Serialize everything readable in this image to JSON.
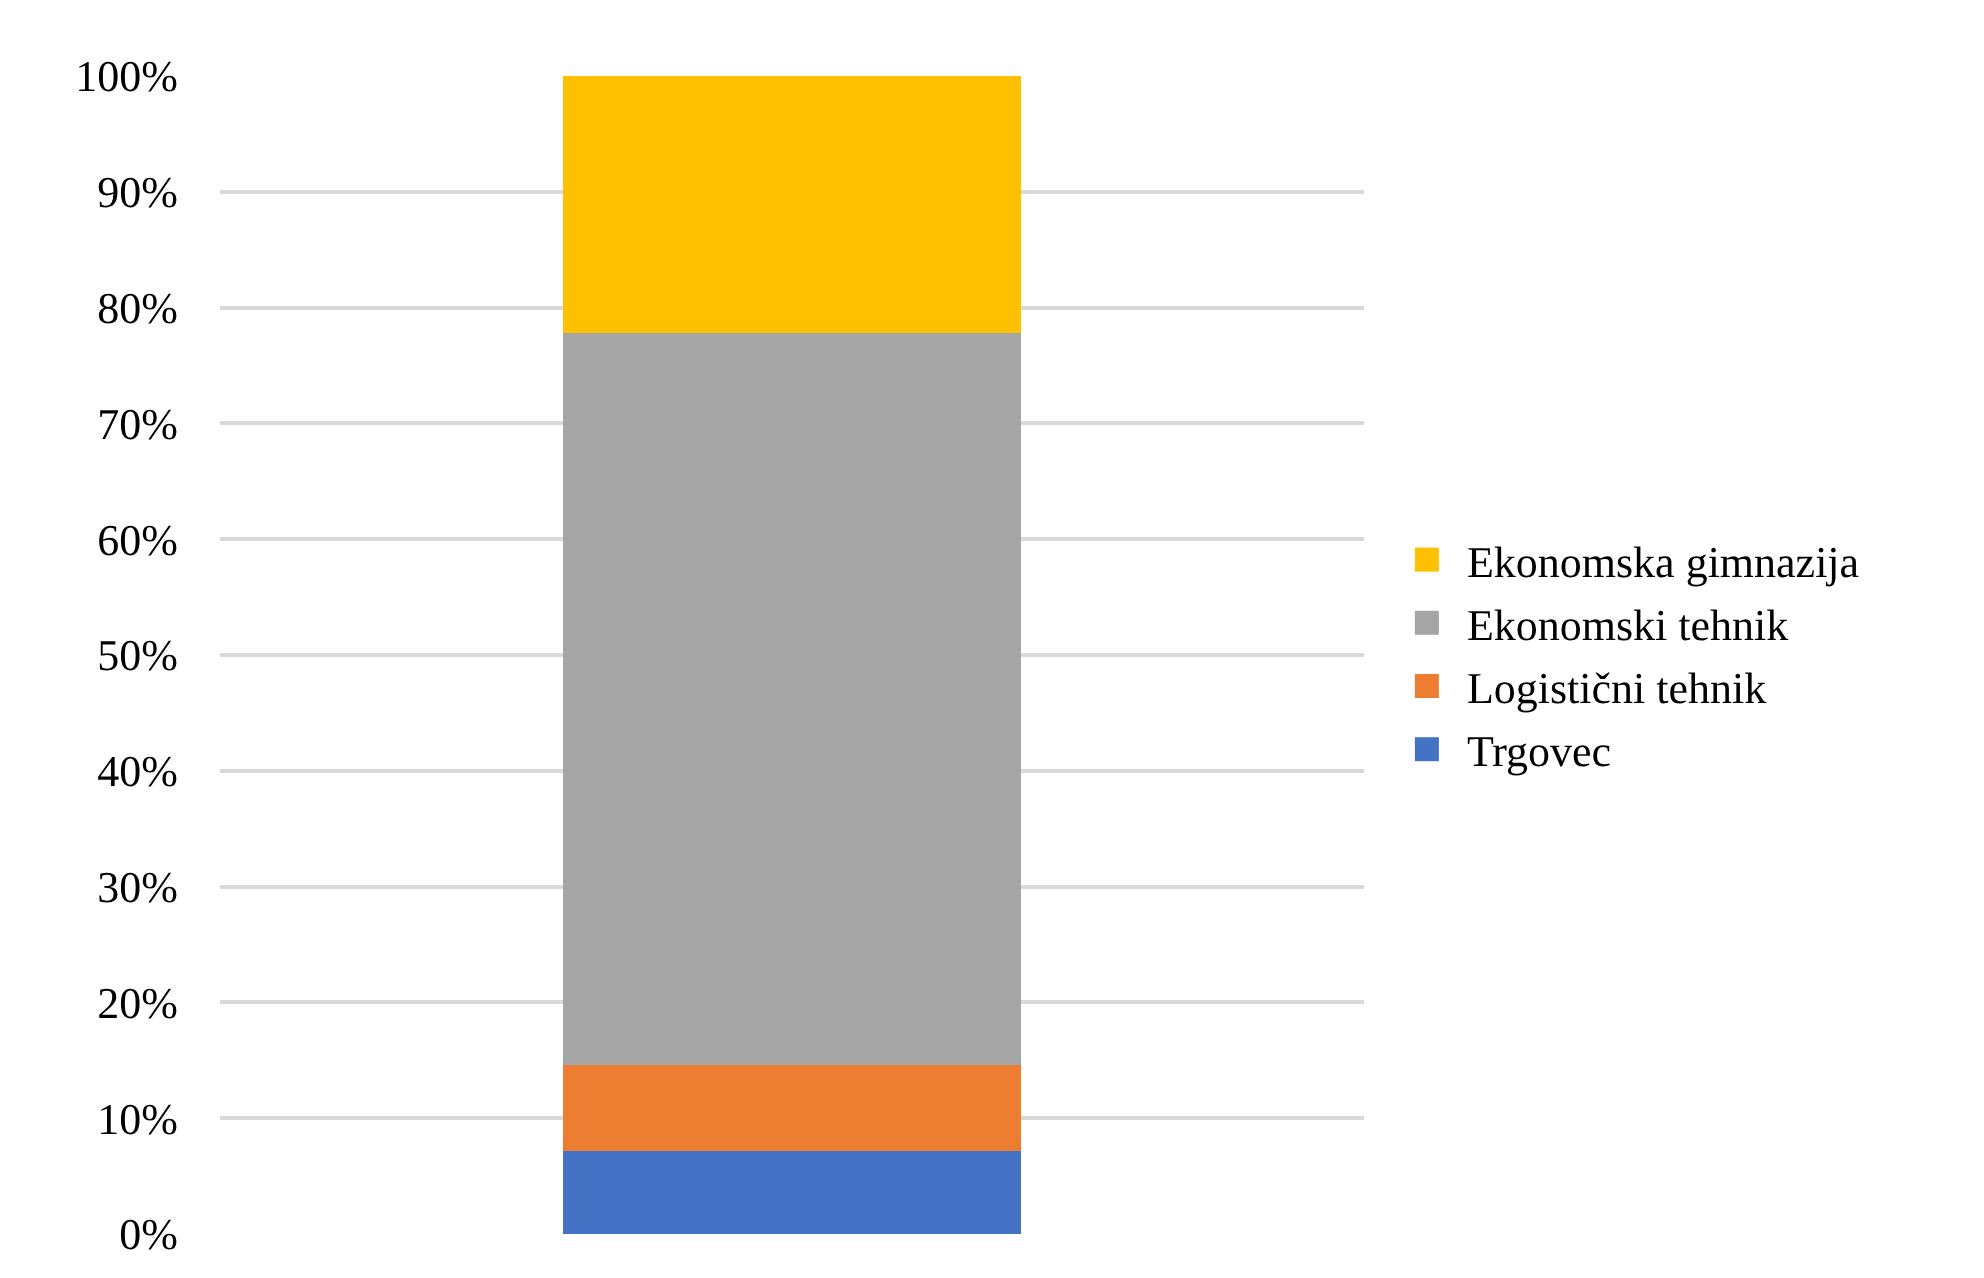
{
  "chart_data": {
    "type": "bar",
    "stacked": true,
    "categories": [
      null
    ],
    "series": [
      {
        "name": "Trgovec",
        "color": "#4472c4",
        "values": [
          7.2
        ]
      },
      {
        "name": "Logistični tehnik",
        "color": "#ed7d31",
        "values": [
          7.4
        ]
      },
      {
        "name": "Ekonomski tehnik",
        "color": "#a5a5a5",
        "values": [
          63.2
        ]
      },
      {
        "name": "Ekonomska gimnazija",
        "color": "#ffc000",
        "values": [
          22.2
        ]
      }
    ],
    "ylim": [
      0,
      100
    ],
    "yticks": [
      {
        "value": 0,
        "label": "0%"
      },
      {
        "value": 10,
        "label": "10%"
      },
      {
        "value": 20,
        "label": "20%"
      },
      {
        "value": 30,
        "label": "30%"
      },
      {
        "value": 40,
        "label": "40%"
      },
      {
        "value": 50,
        "label": "50%"
      },
      {
        "value": 60,
        "label": "60%"
      },
      {
        "value": 70,
        "label": "70%"
      },
      {
        "value": 80,
        "label": "80%"
      },
      {
        "value": 90,
        "label": "90%"
      },
      {
        "value": 100,
        "label": "100%"
      }
    ],
    "grid": "y",
    "legend": "right"
  }
}
